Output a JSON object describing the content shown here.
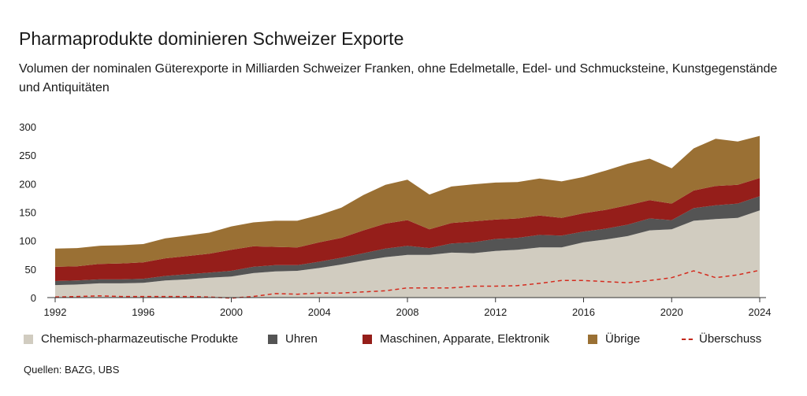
{
  "title": "Pharmaprodukte dominieren Schweizer Exporte",
  "subtitle": "Volumen der nominalen Güterexporte in Milliarden Schweizer Franken, ohne Edelmetalle, Edel- und Schmucksteine, Kunstgegenstände und Antiquitäten",
  "source": "Quellen: BAZG, UBS",
  "legend": {
    "pharma": "Chemisch-pharmazeutische Produkte",
    "uhren": "Uhren",
    "maschinen": "Maschinen, Apparate, Elektronik",
    "uebrige": "Übrige",
    "ueberschuss": "Überschuss"
  },
  "colors": {
    "pharma": "#d1ccc0",
    "uhren": "#545454",
    "maschinen": "#951e1a",
    "uebrige": "#9a7034",
    "ueberschuss": "#d42b1e",
    "axis": "#333333"
  },
  "chart_data": {
    "type": "area",
    "stacked": true,
    "x": [
      1992,
      1993,
      1994,
      1995,
      1996,
      1997,
      1998,
      1999,
      2000,
      2001,
      2002,
      2003,
      2004,
      2005,
      2006,
      2007,
      2008,
      2009,
      2010,
      2011,
      2012,
      2013,
      2014,
      2015,
      2016,
      2017,
      2018,
      2019,
      2020,
      2021,
      2022,
      2023,
      2024
    ],
    "x_ticks": [
      1992,
      1996,
      2000,
      2004,
      2008,
      2012,
      2016,
      2020,
      2024
    ],
    "y_ticks": [
      0,
      50,
      100,
      150,
      200,
      250,
      300
    ],
    "ylim": [
      0,
      300
    ],
    "xlim": [
      1992,
      2024
    ],
    "series": [
      {
        "key": "pharma",
        "name": "Chemisch-pharmazeutische Produkte",
        "values": [
          22,
          23,
          25,
          25,
          26,
          30,
          32,
          35,
          37,
          43,
          46,
          47,
          52,
          58,
          65,
          71,
          75,
          75,
          79,
          78,
          82,
          84,
          88,
          88,
          97,
          102,
          108,
          118,
          120,
          135,
          138,
          140,
          153
        ]
      },
      {
        "key": "uhren",
        "name": "Uhren",
        "values": [
          7,
          7,
          7,
          7,
          7,
          8,
          9,
          9,
          10,
          11,
          11,
          10,
          11,
          12,
          13,
          15,
          16,
          12,
          16,
          19,
          21,
          21,
          22,
          21,
          19,
          19,
          20,
          21,
          16,
          22,
          24,
          25,
          25
        ]
      },
      {
        "key": "maschinen",
        "name": "Maschinen, Apparate, Elektronik",
        "values": [
          25,
          25,
          27,
          28,
          29,
          31,
          32,
          33,
          37,
          36,
          32,
          31,
          34,
          35,
          40,
          44,
          45,
          33,
          36,
          37,
          34,
          34,
          34,
          31,
          32,
          33,
          34,
          32,
          29,
          31,
          34,
          33,
          32
        ]
      },
      {
        "key": "uebrige",
        "name": "Übrige",
        "values": [
          32,
          32,
          32,
          32,
          32,
          35,
          36,
          37,
          41,
          42,
          46,
          47,
          48,
          53,
          62,
          68,
          71,
          61,
          64,
          65,
          65,
          64,
          65,
          64,
          64,
          69,
          73,
          73,
          62,
          74,
          83,
          76,
          74
        ]
      }
    ],
    "line_series": {
      "key": "ueberschuss",
      "name": "Überschuss",
      "values": [
        1,
        2,
        3,
        2,
        2,
        2,
        2,
        1,
        -1,
        2,
        7,
        6,
        8,
        8,
        10,
        12,
        17,
        17,
        17,
        20,
        20,
        21,
        25,
        30,
        30,
        28,
        26,
        30,
        35,
        47,
        35,
        40,
        48
      ]
    }
  }
}
